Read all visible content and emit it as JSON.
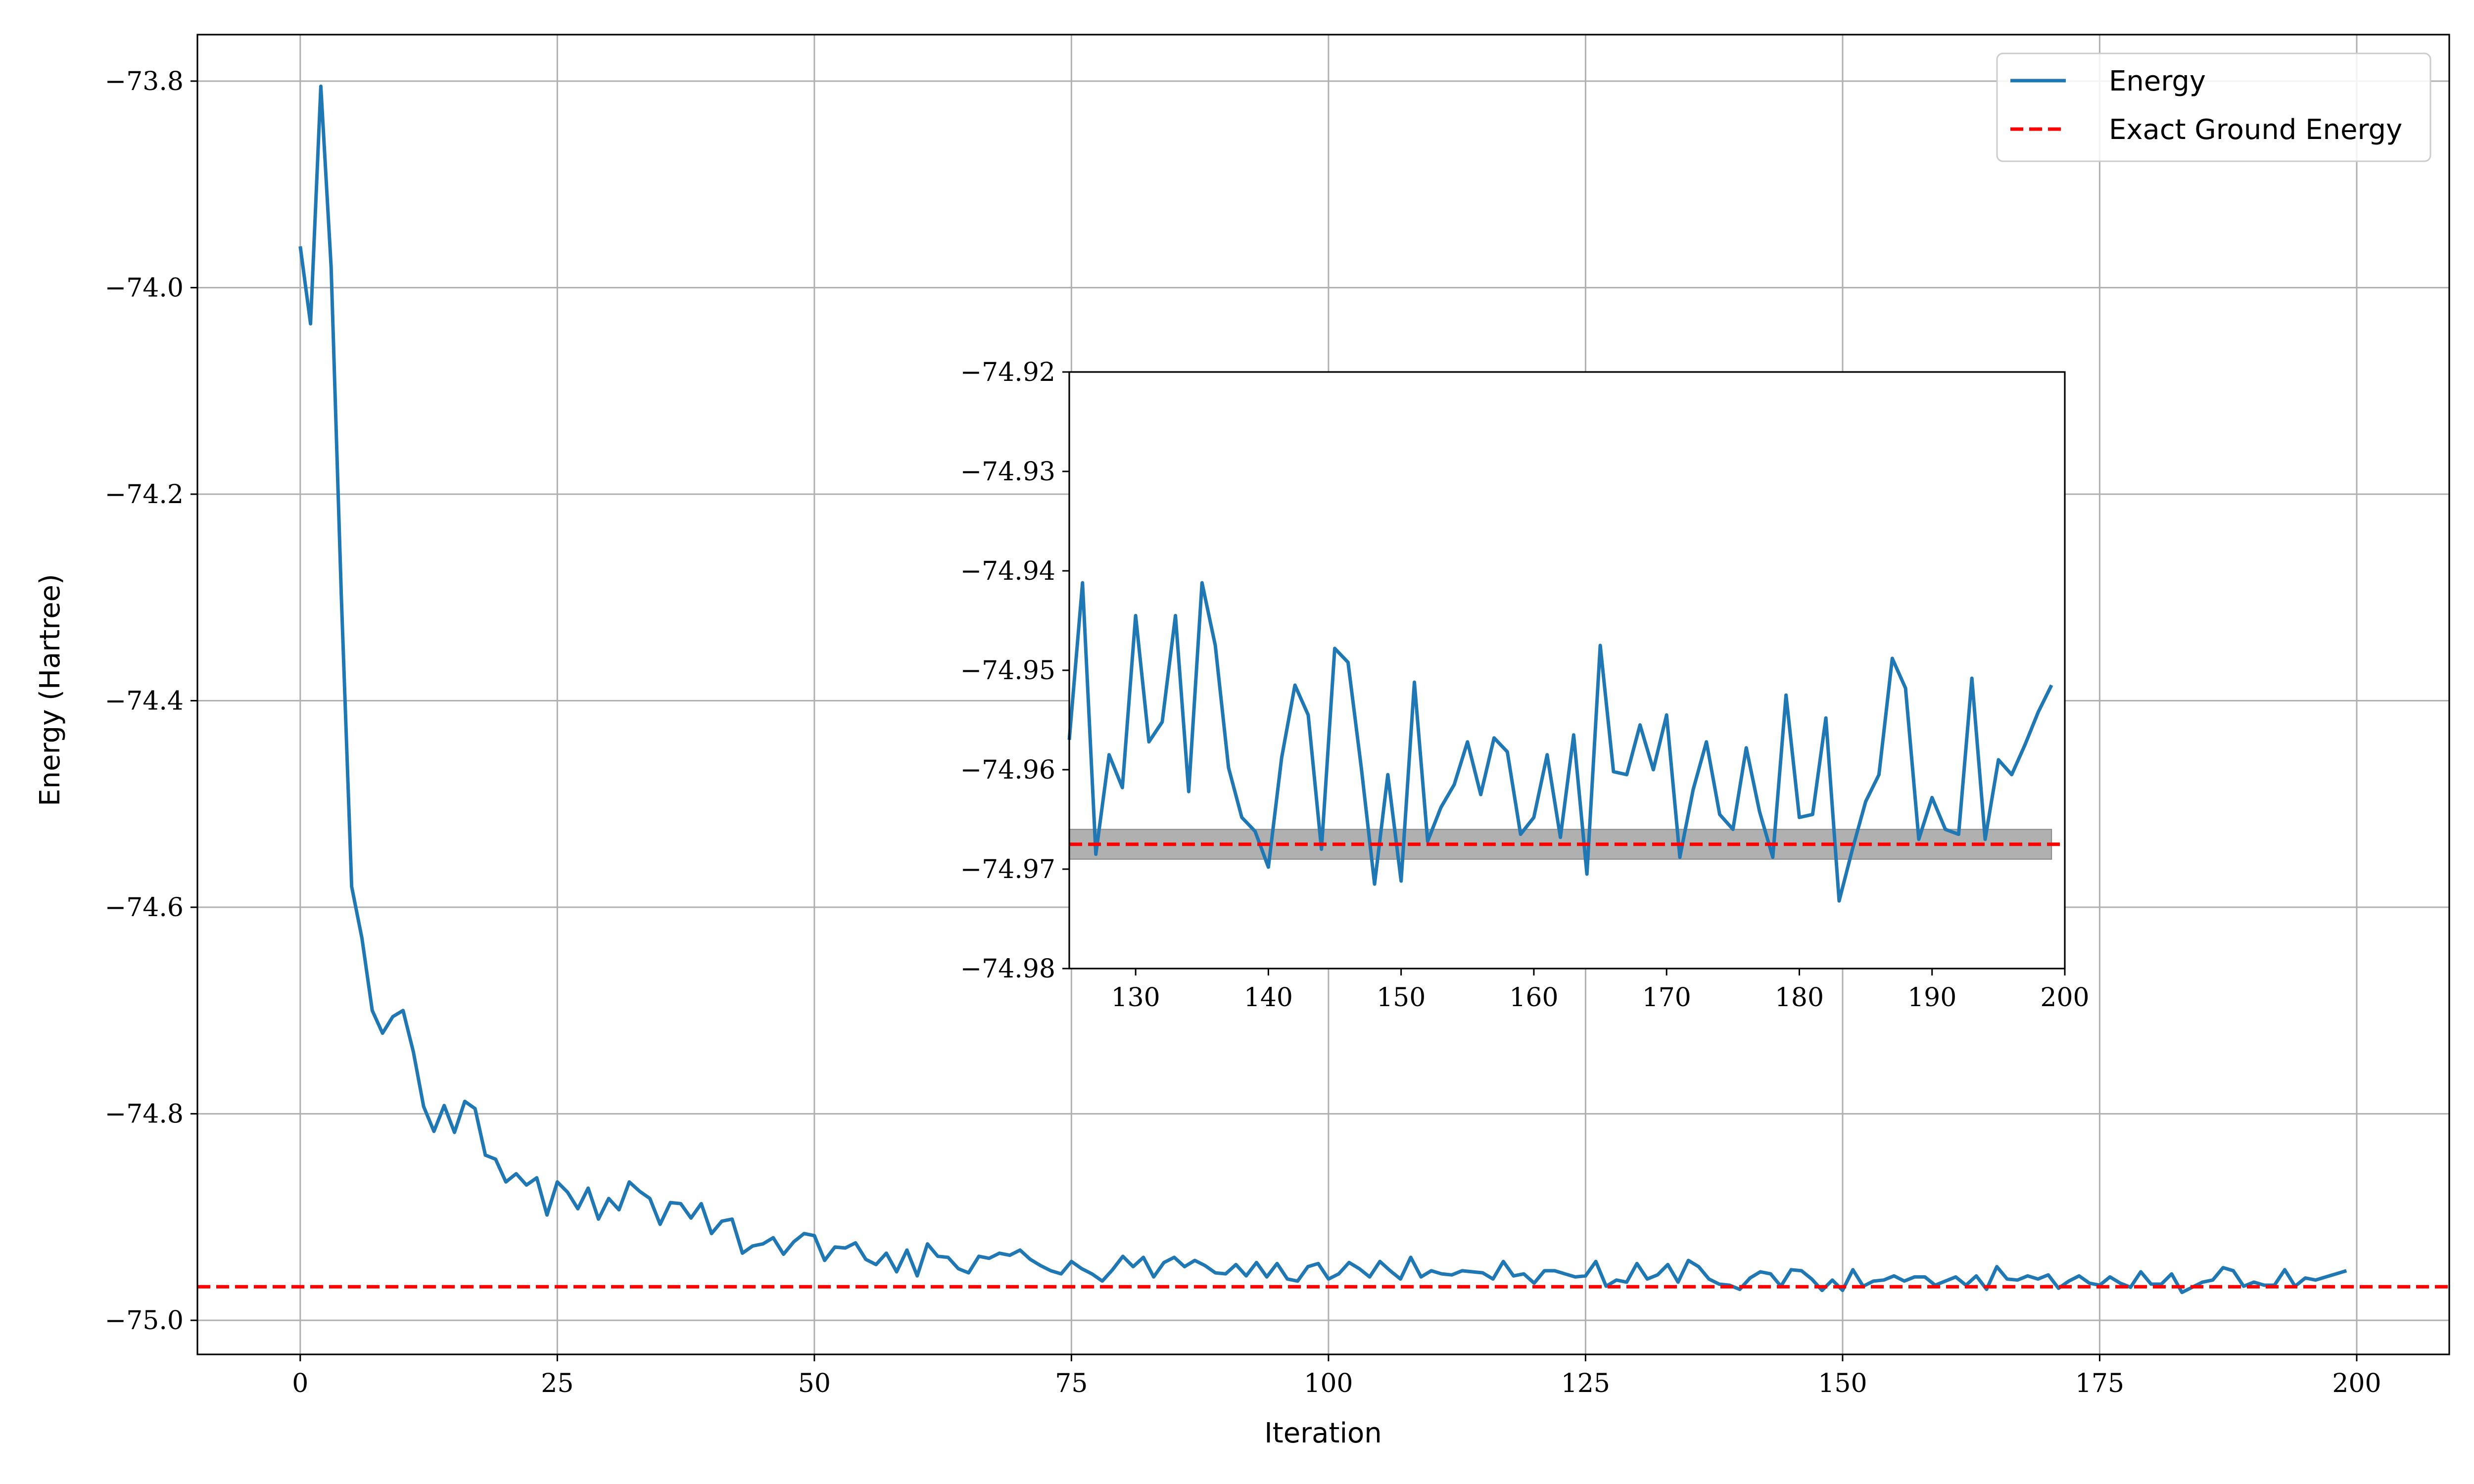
{
  "chart_data": [
    {
      "type": "line",
      "xlabel": "Iteration",
      "ylabel": "Energy (Hartree)",
      "xlim": [
        -10,
        209
      ],
      "ylim": [
        -75.033,
        -73.755
      ],
      "xticks": [
        0,
        25,
        50,
        75,
        100,
        125,
        150,
        175,
        200
      ],
      "xtick_labels": [
        "0",
        "25",
        "50",
        "75",
        "100",
        "125",
        "150",
        "175",
        "200"
      ],
      "yticks": [
        -73.8,
        -74.0,
        -74.2,
        -74.4,
        -74.6,
        -74.8,
        -75.0
      ],
      "ytick_labels": [
        "−73.8",
        "−74.0",
        "−74.2",
        "−74.4",
        "−74.6",
        "−74.8",
        "−75.0"
      ],
      "grid": true,
      "legend": {
        "placement": "top-right",
        "entries": [
          "Energy",
          "Exact Ground Energy"
        ]
      },
      "series": [
        {
          "name": "Energy",
          "color": "#1f77b4",
          "style": "solid",
          "x_start": 0,
          "x_step": 1,
          "values": [
            -73.96,
            -74.035,
            -73.805,
            -73.98,
            -74.3,
            -74.58,
            -74.63,
            -74.7,
            -74.722,
            -74.706,
            -74.7,
            -74.74,
            -74.793,
            -74.817,
            -74.792,
            -74.818,
            -74.788,
            -74.795,
            -74.84,
            -74.844,
            -74.866,
            -74.858,
            -74.869,
            -74.862,
            -74.898,
            -74.866,
            -74.876,
            -74.892,
            -74.872,
            -74.902,
            -74.882,
            -74.893,
            -74.866,
            -74.875,
            -74.882,
            -74.907,
            -74.886,
            -74.887,
            -74.901,
            -74.887,
            -74.916,
            -74.904,
            -74.902,
            -74.935,
            -74.928,
            -74.926,
            -74.92,
            -74.936,
            -74.924,
            -74.916,
            -74.918,
            -74.942,
            -74.929,
            -74.93,
            -74.925,
            -74.941,
            -74.946,
            -74.935,
            -74.953,
            -74.932,
            -74.957,
            -74.926,
            -74.938,
            -74.939,
            -74.95,
            -74.954,
            -74.938,
            -74.94,
            -74.935,
            -74.937,
            -74.932,
            -74.941,
            -74.947,
            -74.952,
            -74.955,
            -74.943,
            -74.95,
            -74.955,
            -74.962,
            -74.951,
            -74.938,
            -74.948,
            -74.939,
            -74.958,
            -74.944,
            -74.939,
            -74.948,
            -74.942,
            -74.947,
            -74.954,
            -74.955,
            -74.946,
            -74.957,
            -74.944,
            -74.958,
            -74.945,
            -74.96,
            -74.962,
            -74.948,
            -74.945,
            -74.96,
            -74.955,
            -74.944,
            -74.95,
            -74.958,
            -74.943,
            -74.952,
            -74.96,
            -74.939,
            -74.958,
            -74.952,
            -74.955,
            -74.956,
            -74.952,
            -74.953,
            -74.954,
            -74.96,
            -74.943,
            -74.957,
            -74.955,
            -74.964,
            -74.952,
            -74.952,
            -74.955,
            -74.958,
            -74.957,
            -74.943,
            -74.967,
            -74.961,
            -74.963,
            -74.945,
            -74.96,
            -74.956,
            -74.946,
            -74.963,
            -74.942,
            -74.948,
            -74.96,
            -74.965,
            -74.966,
            -74.97,
            -74.959,
            -74.953,
            -74.955,
            -74.967,
            -74.951,
            -74.952,
            -74.96,
            -74.971,
            -74.961,
            -74.971,
            -74.951,
            -74.967,
            -74.962,
            -74.961,
            -74.957,
            -74.962,
            -74.958,
            -74.958,
            -74.966,
            -74.962,
            -74.958,
            -74.966,
            -74.957,
            -74.97,
            -74.948,
            -74.96,
            -74.961,
            -74.957,
            -74.96,
            -74.956,
            -74.969,
            -74.962,
            -74.957,
            -74.964,
            -74.966,
            -74.958,
            -74.964,
            -74.968,
            -74.953,
            -74.965,
            -74.965,
            -74.955,
            -74.973,
            -74.968,
            -74.963,
            -74.961,
            -74.949,
            -74.952,
            -74.967,
            -74.963,
            -74.966,
            -74.966,
            -74.951,
            -74.967,
            -74.959,
            -74.961,
            -74.958,
            -74.955,
            -74.952
          ]
        },
        {
          "name": "Exact Ground Energy",
          "color": "#ff0000",
          "style": "dashed",
          "constant": -74.9675
        }
      ]
    },
    {
      "type": "line",
      "inset": true,
      "xlim": [
        125,
        200
      ],
      "ylim": [
        -74.98,
        -74.92
      ],
      "xticks": [
        130,
        140,
        150,
        160,
        170,
        180,
        190,
        200
      ],
      "xtick_labels": [
        "130",
        "140",
        "150",
        "160",
        "170",
        "180",
        "190",
        "200"
      ],
      "yticks": [
        -74.92,
        -74.93,
        -74.94,
        -74.95,
        -74.96,
        -74.97,
        -74.98
      ],
      "ytick_labels": [
        "−74.92",
        "−74.93",
        "−74.94",
        "−74.95",
        "−74.96",
        "−74.97",
        "−74.98"
      ],
      "grid": false,
      "band": {
        "y_low": -74.969,
        "y_high": -74.966,
        "color": "#b0b0b0"
      },
      "series": [
        {
          "name": "Energy",
          "color": "#1f77b4",
          "style": "solid",
          "x": [
            125,
            126,
            127,
            128,
            129,
            130,
            131,
            132,
            133,
            134,
            135,
            136,
            137,
            138,
            139,
            140,
            141,
            142,
            143,
            144,
            145,
            146,
            147,
            148,
            149,
            150,
            151,
            152,
            153,
            154,
            155,
            156,
            157,
            158,
            159,
            160,
            161,
            162,
            163,
            164,
            165,
            166,
            167,
            168,
            169,
            170,
            171,
            172,
            173,
            174,
            175,
            176,
            177,
            178,
            179,
            180,
            181,
            182,
            183,
            184,
            185,
            186,
            187,
            188,
            189,
            190,
            191,
            192,
            193,
            194,
            195,
            196,
            197,
            198,
            199
          ],
          "values": [
            -74.957,
            -74.9412,
            -74.9685,
            -74.9585,
            -74.9618,
            -74.9445,
            -74.9572,
            -74.9552,
            -74.9445,
            -74.9622,
            -74.9412,
            -74.9475,
            -74.9598,
            -74.9648,
            -74.9662,
            -74.9698,
            -74.9588,
            -74.9515,
            -74.9545,
            -74.968,
            -74.9478,
            -74.9492,
            -74.9598,
            -74.9715,
            -74.9605,
            -74.9712,
            -74.9512,
            -74.9672,
            -74.9638,
            -74.9615,
            -74.9572,
            -74.9625,
            -74.9568,
            -74.9582,
            -74.9665,
            -74.9648,
            -74.9585,
            -74.9668,
            -74.9565,
            -74.9705,
            -74.9475,
            -74.9602,
            -74.9605,
            -74.9555,
            -74.96,
            -74.9545,
            -74.9688,
            -74.962,
            -74.9572,
            -74.9645,
            -74.966,
            -74.9578,
            -74.9642,
            -74.9688,
            -74.9525,
            -74.9648,
            -74.9645,
            -74.9548,
            -74.9732,
            -74.968,
            -74.9632,
            -74.9605,
            -74.9488,
            -74.9518,
            -74.967,
            -74.9628,
            -74.966,
            -74.9665,
            -74.9508,
            -74.967,
            -74.959,
            -74.9605,
            -74.9575,
            -74.9542,
            -74.9515
          ]
        },
        {
          "name": "Exact Ground Energy",
          "color": "#ff0000",
          "style": "dashed",
          "constant": -74.9675
        }
      ]
    }
  ]
}
